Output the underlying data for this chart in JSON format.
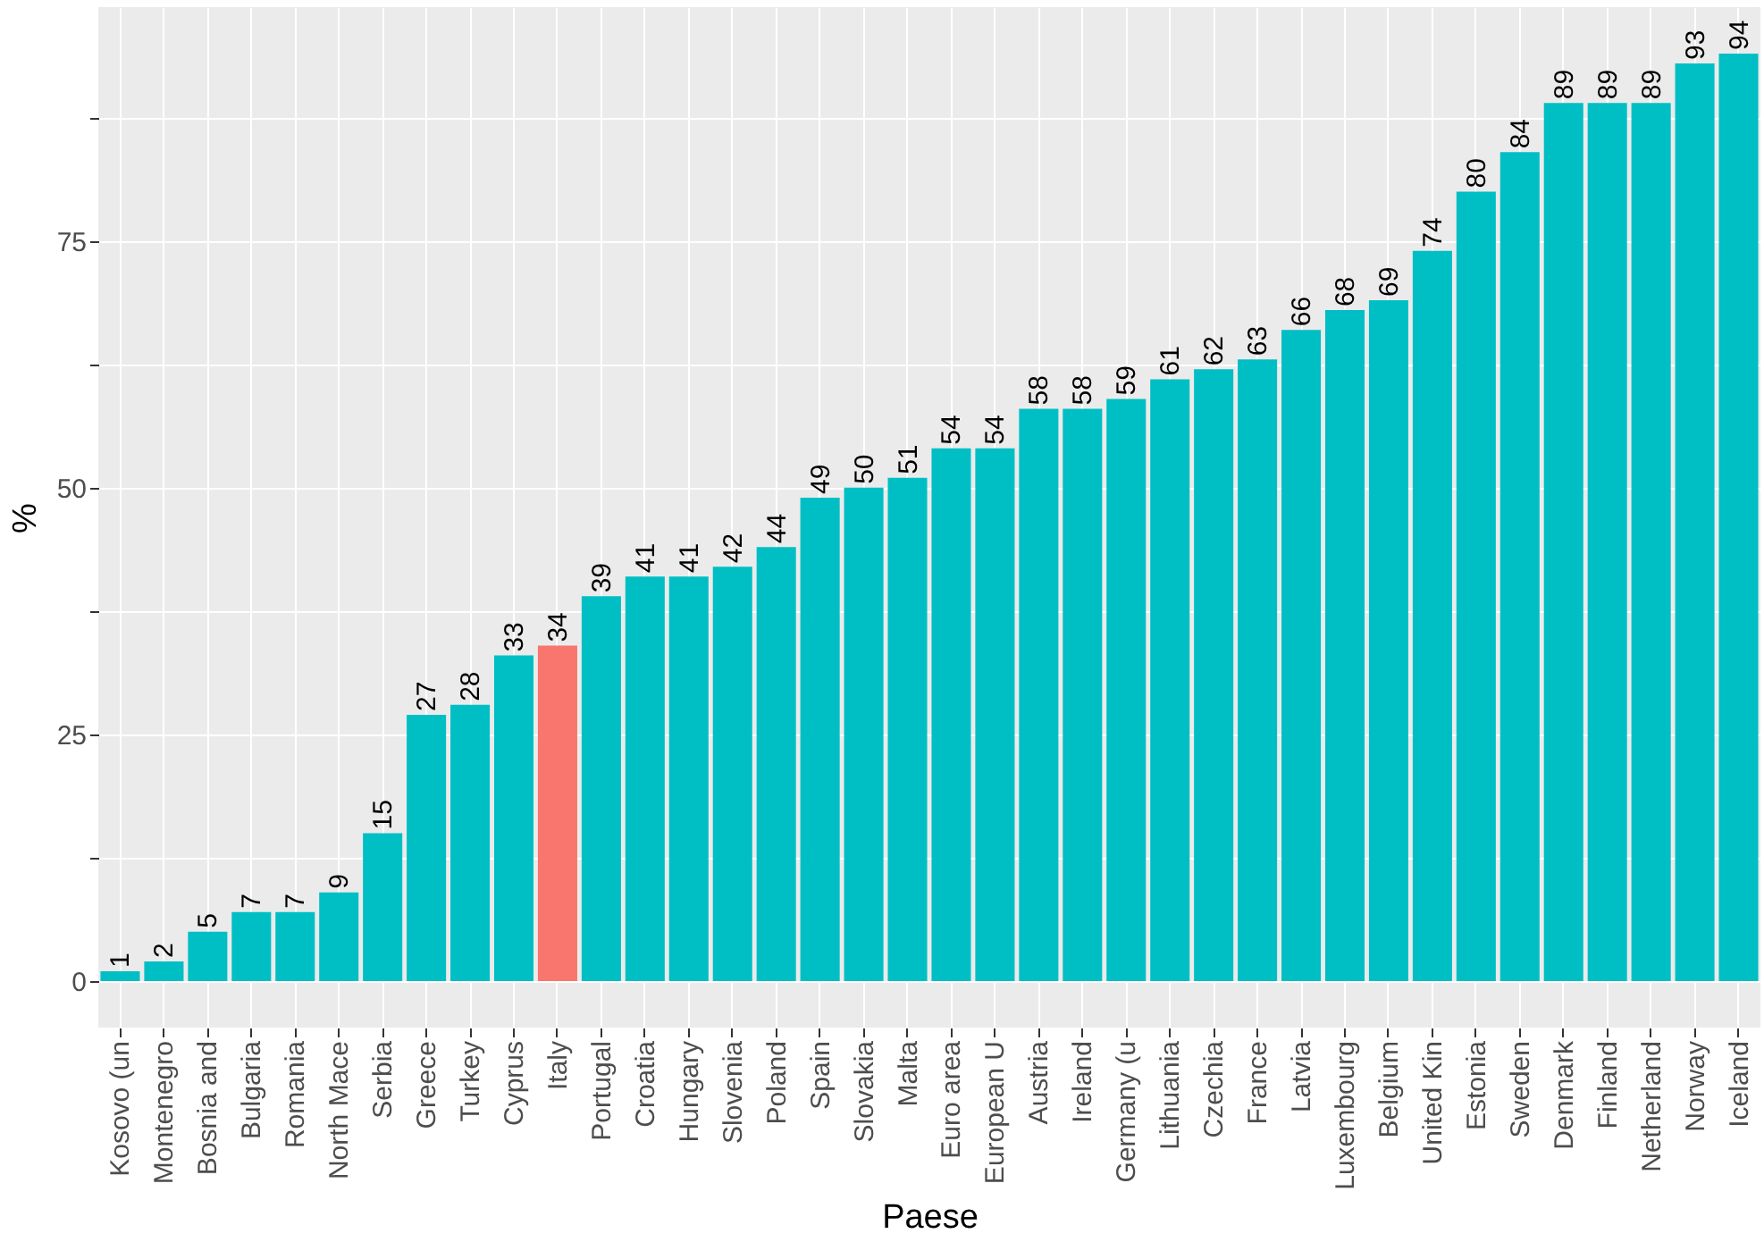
{
  "chart_data": {
    "type": "bar",
    "xlabel": "Paese",
    "ylabel": "%",
    "categories": [
      "Kosovo (un",
      "Montenegro",
      "Bosnia and",
      "Bulgaria",
      "Romania",
      "North Mace",
      "Serbia",
      "Greece",
      "Turkey",
      "Cyprus",
      "Italy",
      "Portugal",
      "Croatia",
      "Hungary",
      "Slovenia",
      "Poland",
      "Spain",
      "Slovakia",
      "Malta",
      "Euro area",
      "European U",
      "Austria",
      "Ireland",
      "Germany (u",
      "Lithuania",
      "Czechia",
      "France",
      "Latvia",
      "Luxembourg",
      "Belgium",
      "United Kin",
      "Estonia",
      "Sweden",
      "Denmark",
      "Finland",
      "Netherland",
      "Norway",
      "Iceland"
    ],
    "values": [
      1,
      2,
      5,
      7,
      7,
      9,
      15,
      27,
      28,
      33,
      34,
      39,
      41,
      41,
      42,
      44,
      49,
      50,
      51,
      54,
      54,
      58,
      58,
      59,
      61,
      62,
      63,
      66,
      68,
      69,
      74,
      80,
      84,
      89,
      89,
      89,
      93,
      94
    ],
    "colors": [
      "#00bfc4",
      "#00bfc4",
      "#00bfc4",
      "#00bfc4",
      "#00bfc4",
      "#00bfc4",
      "#00bfc4",
      "#00bfc4",
      "#00bfc4",
      "#00bfc4",
      "#f8766d",
      "#00bfc4",
      "#00bfc4",
      "#00bfc4",
      "#00bfc4",
      "#00bfc4",
      "#00bfc4",
      "#00bfc4",
      "#00bfc4",
      "#00bfc4",
      "#00bfc4",
      "#00bfc4",
      "#00bfc4",
      "#00bfc4",
      "#00bfc4",
      "#00bfc4",
      "#00bfc4",
      "#00bfc4",
      "#00bfc4",
      "#00bfc4",
      "#00bfc4",
      "#00bfc4",
      "#00bfc4",
      "#00bfc4",
      "#00bfc4",
      "#00bfc4",
      "#00bfc4",
      "#00bfc4"
    ],
    "ylim": [
      -4.7,
      98.7
    ],
    "yticks": [
      0,
      {
        "value": 12.5,
        "label": null
      },
      25,
      {
        "value": 37.5,
        "label": null
      },
      50,
      {
        "value": 62.5,
        "label": null
      },
      75,
      {
        "value": 87.5,
        "label": null
      }
    ],
    "grid": true,
    "data_labels": true
  }
}
